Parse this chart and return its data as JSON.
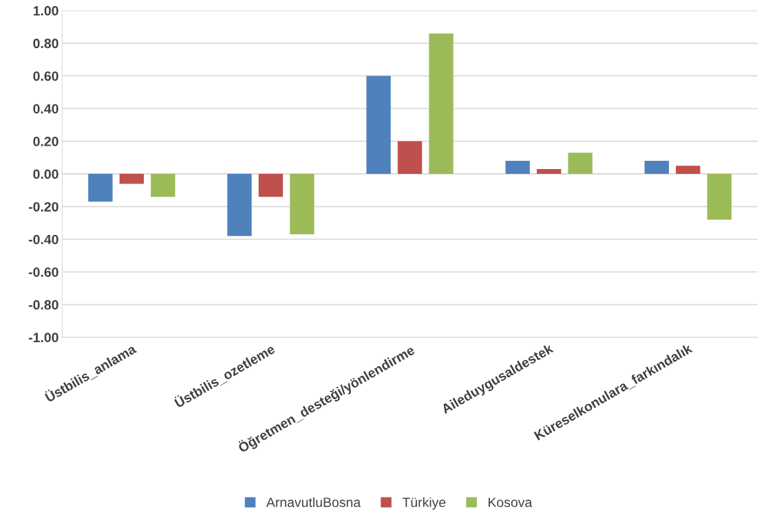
{
  "chart_data": {
    "type": "bar",
    "categories": [
      "Üstbilis_anlama",
      "Üstbilis_ozetleme",
      "Öğretmen_desteği/yönlendirme",
      "Aileduygusaldestek",
      "Küreselkonulara_farkındalık"
    ],
    "series": [
      {
        "name": "ArnavutluBosna",
        "color": "#4f81bd",
        "values": [
          -0.17,
          -0.38,
          0.6,
          0.08,
          0.08
        ]
      },
      {
        "name": "Türkiye",
        "color": "#c0504d",
        "values": [
          -0.06,
          -0.14,
          0.2,
          0.03,
          0.05
        ]
      },
      {
        "name": "Kosova",
        "color": "#9bbb59",
        "values": [
          -0.14,
          -0.37,
          0.86,
          0.13,
          -0.28
        ]
      }
    ],
    "ylim": [
      -1.0,
      1.0
    ],
    "yticks": [
      {
        "value": -1.0,
        "label": "-1.00"
      },
      {
        "value": -0.8,
        "label": "-0.80"
      },
      {
        "value": -0.6,
        "label": "-0.60"
      },
      {
        "value": -0.4,
        "label": "-0.40"
      },
      {
        "value": -0.2,
        "label": "-0.20"
      },
      {
        "value": 0.0,
        "label": "0.00"
      },
      {
        "value": 0.2,
        "label": "0.20"
      },
      {
        "value": 0.4,
        "label": "0.40"
      },
      {
        "value": 0.6,
        "label": "0.60"
      },
      {
        "value": 0.8,
        "label": "0.80"
      },
      {
        "value": 1.0,
        "label": "1.00"
      }
    ],
    "grid": "y",
    "legend": "bottom"
  }
}
